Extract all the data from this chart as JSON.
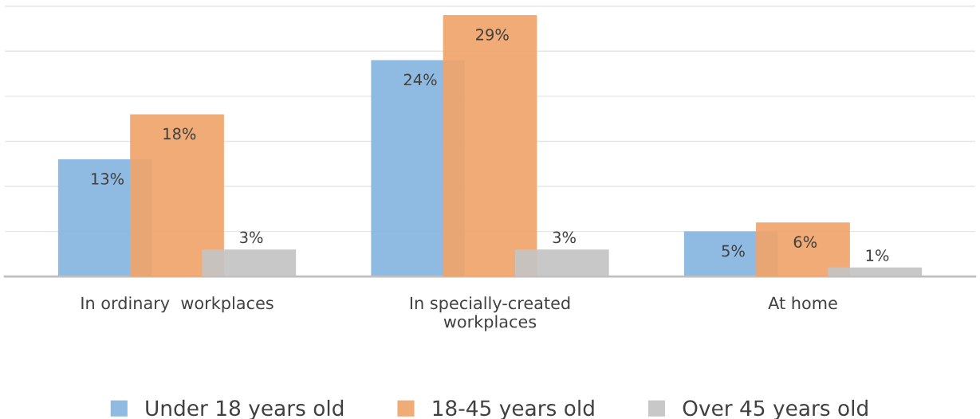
{
  "chart_data": {
    "type": "bar",
    "categories": [
      "In ordinary  workplaces",
      "In specially-created\nworkplaces",
      "At home"
    ],
    "series": [
      {
        "name": "Under 18 years old",
        "color": "#86b5e0",
        "values": [
          13,
          24,
          5
        ],
        "value_labels": [
          "13%",
          "24%",
          "5%"
        ]
      },
      {
        "name": "18-45 years old",
        "color": "#f0a46b",
        "values": [
          18,
          29,
          6
        ],
        "value_labels": [
          "18%",
          "29%",
          "6%"
        ]
      },
      {
        "name": "Over 45 years old",
        "color": "#c3c3c3",
        "values": [
          3,
          3,
          1
        ],
        "value_labels": [
          "3%",
          "3%",
          "1%"
        ]
      }
    ],
    "grid": "y",
    "tick_labels": "x",
    "legend": "bottom"
  }
}
